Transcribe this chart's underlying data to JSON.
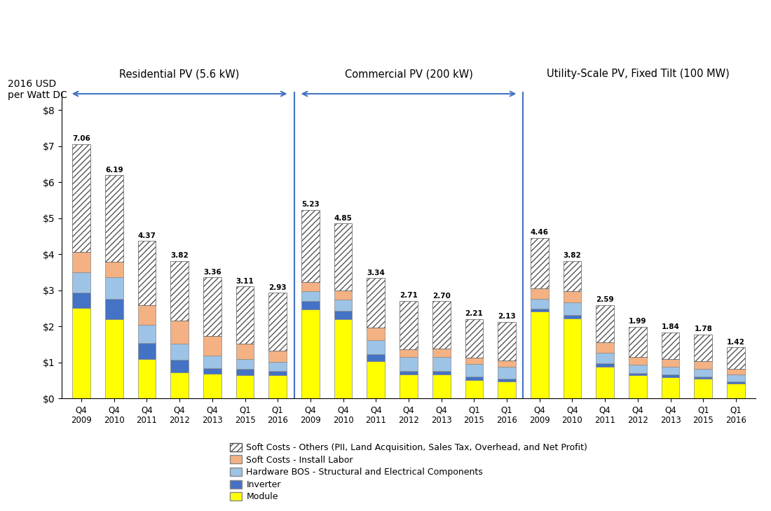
{
  "categories": [
    "Q4\n2009",
    "Q4\n2010",
    "Q4\n2011",
    "Q4\n2012",
    "Q4\n2013",
    "Q1\n2015",
    "Q1\n2016",
    "Q4\n2009",
    "Q4\n2010",
    "Q4\n2011",
    "Q4\n2012",
    "Q4\n2013",
    "Q1\n2015",
    "Q1\n2016",
    "Q4\n2009",
    "Q4\n2010",
    "Q4\n2011",
    "Q4\n2012",
    "Q4\n2013",
    "Q1\n2015",
    "Q1\n2016"
  ],
  "totals": [
    7.06,
    6.19,
    4.37,
    3.82,
    3.36,
    3.11,
    2.93,
    5.23,
    4.85,
    3.34,
    2.71,
    2.7,
    2.21,
    2.13,
    4.46,
    3.82,
    2.59,
    1.99,
    1.84,
    1.78,
    1.42
  ],
  "module": [
    2.51,
    2.2,
    1.09,
    0.72,
    0.69,
    0.64,
    0.64,
    2.48,
    2.21,
    1.03,
    0.67,
    0.67,
    0.52,
    0.48,
    2.41,
    2.22,
    0.89,
    0.64,
    0.59,
    0.55,
    0.42
  ],
  "inverter": [
    0.42,
    0.56,
    0.45,
    0.35,
    0.15,
    0.18,
    0.13,
    0.22,
    0.22,
    0.2,
    0.09,
    0.09,
    0.08,
    0.07,
    0.09,
    0.1,
    0.09,
    0.07,
    0.07,
    0.06,
    0.05
  ],
  "hardware_bos": [
    0.57,
    0.6,
    0.5,
    0.45,
    0.35,
    0.28,
    0.24,
    0.28,
    0.32,
    0.38,
    0.4,
    0.4,
    0.35,
    0.33,
    0.26,
    0.35,
    0.28,
    0.23,
    0.22,
    0.22,
    0.19
  ],
  "install_labor": [
    0.56,
    0.43,
    0.55,
    0.65,
    0.55,
    0.42,
    0.32,
    0.25,
    0.25,
    0.35,
    0.21,
    0.22,
    0.18,
    0.18,
    0.3,
    0.3,
    0.3,
    0.21,
    0.21,
    0.2,
    0.16
  ],
  "section_dividers": [
    6.5,
    13.5
  ],
  "section_labels": [
    "Residential PV (5.6 kW)",
    "Commercial PV (200 kW)",
    "Utility-Scale PV, Fixed Tilt (100 MW)"
  ],
  "ylabel": "2016 USD\nper Watt DC",
  "ylim": [
    0,
    8.5
  ],
  "yticks": [
    0,
    1,
    2,
    3,
    4,
    5,
    6,
    7,
    8
  ],
  "ytick_labels": [
    "$0",
    "$1",
    "$2",
    "$3",
    "$4",
    "$5",
    "$6",
    "$7",
    "$8"
  ],
  "color_module": "#FFFF00",
  "color_inverter": "#4472C4",
  "color_hardware_bos": "#9DC3E6",
  "color_install_labor": "#F4B183",
  "divider_color": "#4472C4",
  "arrow_color": "#4472C4",
  "bar_width": 0.55,
  "legend_labels": [
    "Soft Costs - Others (PII, Land Acquisition, Sales Tax, Overhead, and Net Profit)",
    "Soft Costs - Install Labor",
    "Hardware BOS - Structural and Electrical Components",
    "Inverter",
    "Module"
  ]
}
